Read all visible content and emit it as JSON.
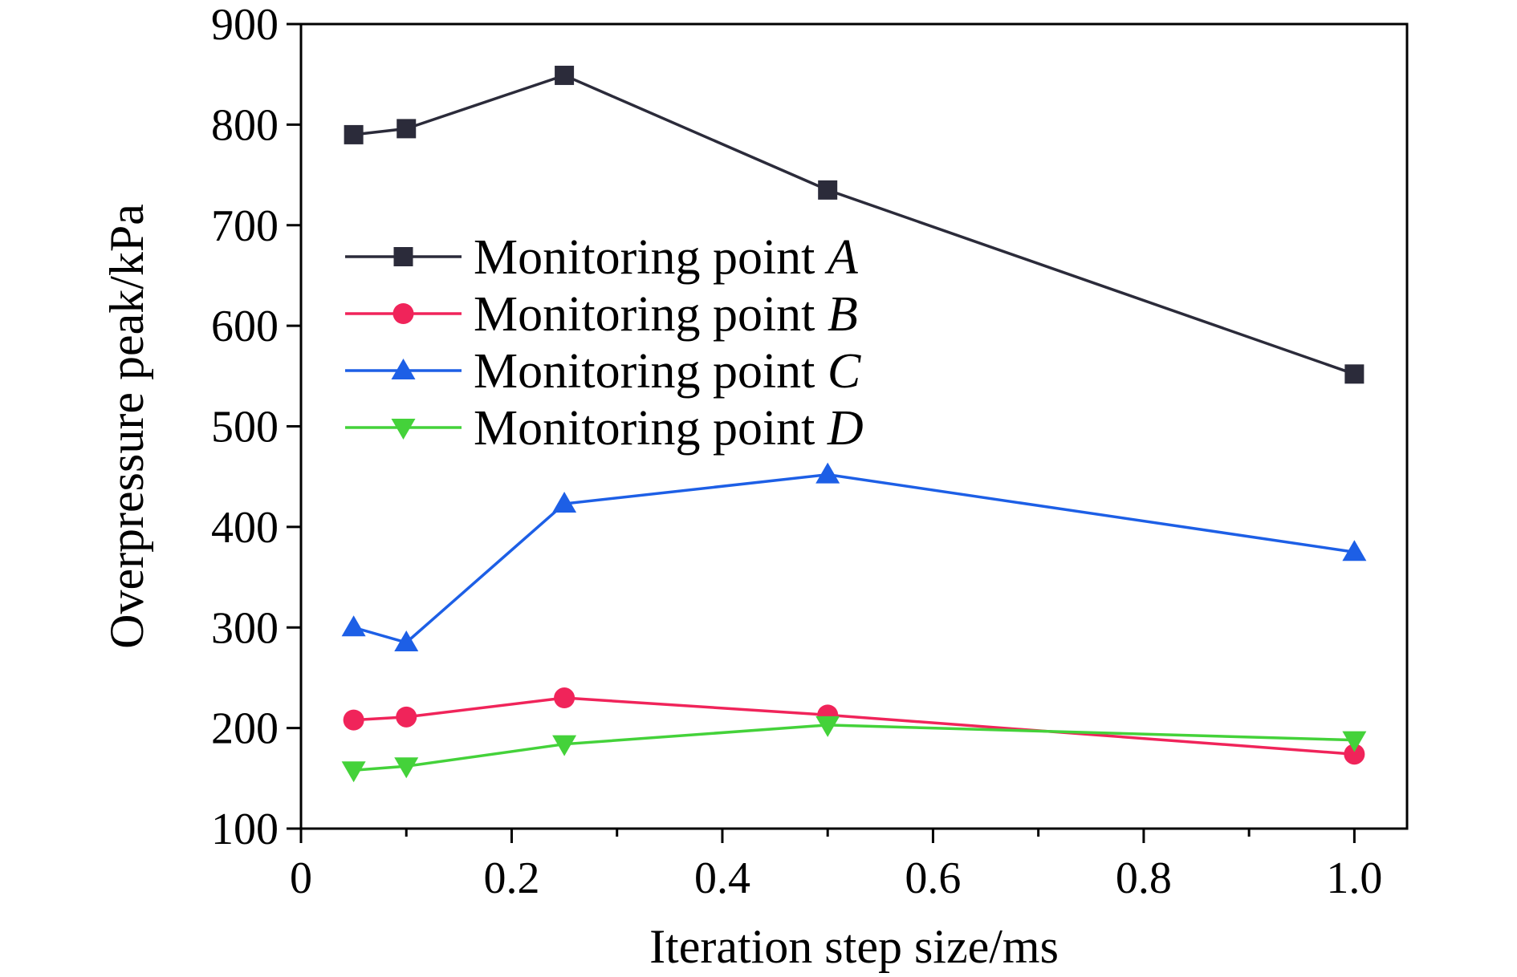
{
  "chart_data": {
    "type": "line",
    "xlabel": "Iteration step size/ms",
    "ylabel": "Overpressure peak/kPa",
    "xlim": [
      0,
      1.05
    ],
    "ylim": [
      100,
      900
    ],
    "x_ticks": [
      0,
      0.2,
      0.4,
      0.6,
      0.8,
      1.0
    ],
    "x_tick_labels": [
      "0",
      "0.2",
      "0.4",
      "0.6",
      "0.8",
      "1.0"
    ],
    "y_ticks": [
      100,
      200,
      300,
      400,
      500,
      600,
      700,
      800,
      900
    ],
    "y_tick_labels": [
      "100",
      "200",
      "300",
      "400",
      "500",
      "600",
      "700",
      "800",
      "900"
    ],
    "grid": false,
    "legend_position": "upper-left",
    "x": [
      0.05,
      0.1,
      0.25,
      0.5,
      1.0
    ],
    "series": [
      {
        "name": "Monitoring point ",
        "name_italic": "A",
        "color": "#2b2b3a",
        "marker": "square",
        "values": [
          790,
          796,
          849,
          735,
          552
        ]
      },
      {
        "name": "Monitoring point ",
        "name_italic": "B",
        "color": "#f0245a",
        "marker": "circle",
        "values": [
          208,
          211,
          230,
          213,
          174
        ]
      },
      {
        "name": "Monitoring point ",
        "name_italic": "C",
        "color": "#1d5fe6",
        "marker": "triangle-up",
        "values": [
          300,
          285,
          423,
          452,
          375
        ]
      },
      {
        "name": "Monitoring point ",
        "name_italic": "D",
        "color": "#44d23a",
        "marker": "triangle-down",
        "values": [
          158,
          162,
          184,
          203,
          188
        ]
      }
    ]
  }
}
